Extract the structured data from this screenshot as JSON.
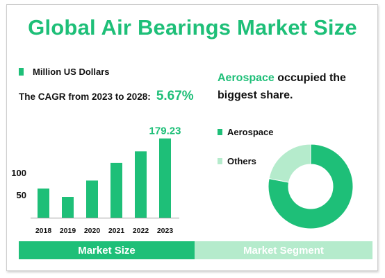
{
  "title": "Global Air Bearings Market Size",
  "legend_label": "Million US Dollars",
  "cagr_label": "The CAGR from 2023 to 2028:",
  "cagr_value": "5.67%",
  "headline_highlight": "Aerospace",
  "headline_rest": " occupied the biggest share.",
  "footer": {
    "left": "Market Size",
    "right": "Market Segment"
  },
  "colors": {
    "primary": "#1ebf78",
    "secondary": "#b5ebcc"
  },
  "chart_data": [
    {
      "type": "bar",
      "categories": [
        "2018",
        "2019",
        "2020",
        "2021",
        "2022",
        "2023"
      ],
      "values": [
        66,
        47,
        84,
        124,
        150,
        179.23
      ],
      "value_labels": [
        "",
        "",
        "",
        "",
        "",
        "179.23"
      ],
      "yticks": [
        50,
        100
      ],
      "ylim": [
        0,
        185
      ],
      "color": "#1ebf78"
    },
    {
      "type": "pie",
      "donut": true,
      "labels": [
        "Aerospace",
        "Others"
      ],
      "values": [
        78,
        22
      ],
      "colors": [
        "#1ebf78",
        "#b5ebcc"
      ]
    }
  ]
}
